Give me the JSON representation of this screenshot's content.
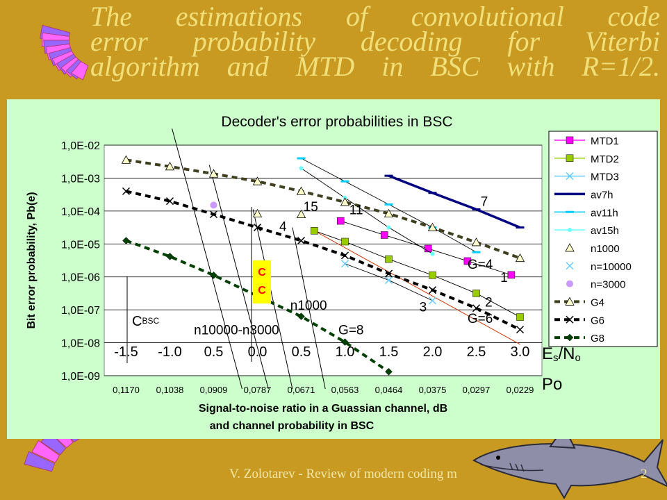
{
  "slide": {
    "title_lines": [
      "The estimations of convolutional code",
      "error probability decoding for Viterbi",
      "algorithm and MTD in BSC with R=1/2."
    ],
    "footer": "V. Zolotarev - Review of modern coding m",
    "page_number": "2",
    "colors": {
      "background": "#c89a22",
      "title": "#f1e079",
      "panel": "#ccffcc"
    }
  },
  "chart_data": {
    "type": "line",
    "title": "Decoder's error probabilities in BSC",
    "ylabel": "Bit error probability, Pb(e)",
    "xlabel": [
      "Signal-to-noise ratio in a Guassian channel, dB",
      "and channel probability in BSC"
    ],
    "x_ticks": [
      "0,1170",
      "0,1038",
      "0,0909",
      "0,0787",
      "0,0671",
      "0,0563",
      "0,0464",
      "0,0375",
      "0,0297",
      "0,0229"
    ],
    "snr_ticks": [
      "-1.5",
      "-1.0",
      "0.5",
      "0.0",
      "0.5",
      "1.0",
      "1.5",
      "2.0",
      "2.5",
      "3.0"
    ],
    "y_ticks": [
      "1,0E-02",
      "1,0E-03",
      "1,0E-04",
      "1,0E-05",
      "1,0E-06",
      "1,0E-07",
      "1,0E-08",
      "1,0E-09"
    ],
    "ylim_exp": [
      -9,
      -2
    ],
    "log_y": true,
    "grid": true,
    "legend_position": "right",
    "series": [
      {
        "name": "MTD1",
        "color": "#ff00ff",
        "marker": "square",
        "line": "solid-thin",
        "points": [
          [
            4.9,
            -4.3
          ],
          [
            5.9,
            -4.73
          ],
          [
            6.9,
            -5.14
          ],
          [
            7.8,
            -5.52
          ],
          [
            8.8,
            -5.94
          ]
        ]
      },
      {
        "name": "MTD2",
        "color": "#99cc00",
        "marker": "square",
        "line": "solid-thin",
        "points": [
          [
            4.3,
            -4.6
          ],
          [
            5.0,
            -4.93
          ],
          [
            6.0,
            -5.46
          ],
          [
            7.0,
            -5.95
          ],
          [
            8.0,
            -6.5
          ],
          [
            9.0,
            -7.22
          ]
        ]
      },
      {
        "name": "MTD3",
        "color": "#66ccff",
        "marker": "x",
        "line": "solid-thin",
        "points": [
          [
            5.0,
            -5.6
          ],
          [
            6.0,
            -6.1
          ],
          [
            7.0,
            -6.72
          ]
        ]
      },
      {
        "name": "av7h",
        "color": "#000080",
        "marker": "dash",
        "line": "solid-thick",
        "points": [
          [
            6.0,
            -2.93
          ],
          [
            7.0,
            -3.45
          ],
          [
            8.0,
            -3.95
          ],
          [
            9.0,
            -4.5
          ]
        ]
      },
      {
        "name": "av11h",
        "color": "#00ccff",
        "marker": "dash",
        "line": "solid-thin",
        "points": [
          [
            4.0,
            -2.4
          ],
          [
            5.0,
            -3.1
          ],
          [
            6.0,
            -3.8
          ],
          [
            7.0,
            -4.5
          ],
          [
            8.0,
            -5.25
          ]
        ]
      },
      {
        "name": "av15h",
        "color": "#66ffff",
        "marker": "dot",
        "line": "solid-thin",
        "points": [
          [
            4.0,
            -2.7
          ],
          [
            5.0,
            -3.6
          ],
          [
            6.0,
            -4.5
          ],
          [
            7.0,
            -5.3
          ]
        ]
      },
      {
        "name": "n1000",
        "color": "#ffffcc",
        "marker": "triangle",
        "line": "none",
        "points": [
          [
            3.0,
            -4.08
          ],
          [
            4.0,
            -4.1
          ]
        ]
      },
      {
        "name": "n=10000",
        "color": "#66ccff",
        "marker": "x",
        "line": "none",
        "points": [
          [
            6.0,
            -5.9
          ]
        ]
      },
      {
        "name": "n=3000",
        "color": "#cc99ff",
        "marker": "circle",
        "line": "none",
        "points": [
          [
            2.0,
            -3.82
          ]
        ]
      },
      {
        "name": "G4",
        "color": "#ffffcc",
        "marker": "triangle",
        "line": "dashed",
        "points": [
          [
            0,
            -2.45
          ],
          [
            1,
            -2.65
          ],
          [
            2,
            -2.87
          ],
          [
            3,
            -3.1
          ],
          [
            4,
            -3.4
          ],
          [
            5,
            -3.73
          ],
          [
            6,
            -4.08
          ],
          [
            7,
            -4.5
          ],
          [
            8,
            -4.95
          ],
          [
            9,
            -5.43
          ]
        ]
      },
      {
        "name": "G6",
        "color": "#000000",
        "marker": "x",
        "line": "dashed",
        "points": [
          [
            0,
            -3.4
          ],
          [
            1,
            -3.7
          ],
          [
            2,
            -4.1
          ],
          [
            3,
            -4.5
          ],
          [
            4,
            -4.9
          ],
          [
            5,
            -5.35
          ],
          [
            6,
            -5.9
          ],
          [
            7,
            -6.4
          ],
          [
            8,
            -6.95
          ],
          [
            9,
            -7.6
          ]
        ]
      },
      {
        "name": "G8",
        "color": "#004000",
        "marker": "diamond",
        "line": "dashed",
        "points": [
          [
            0,
            -4.9
          ],
          [
            1,
            -5.38
          ],
          [
            2,
            -5.95
          ],
          [
            3,
            -6.58
          ],
          [
            4,
            -7.2
          ],
          [
            5,
            -7.98
          ],
          [
            6,
            -8.88
          ]
        ]
      }
    ],
    "boundary_lines": [
      {
        "points": [
          [
            1.05,
            -1.5
          ],
          [
            2.65,
            -9.4
          ]
        ]
      },
      {
        "points": [
          [
            1.9,
            -2.6
          ],
          [
            3.25,
            -9.4
          ]
        ]
      },
      {
        "points": [
          [
            2.9,
            -3.95
          ],
          [
            3.8,
            -9.4
          ]
        ]
      },
      {
        "points": [
          [
            3.8,
            -4.5
          ],
          [
            4.55,
            -9.4
          ]
        ]
      }
    ],
    "extra_line": {
      "color": "#cc3300",
      "points": [
        [
          4.3,
          -4.6
        ],
        [
          9.0,
          -8.05
        ]
      ]
    },
    "annotations": [
      {
        "text": "15",
        "x": 4.05,
        "y": -4.0
      },
      {
        "text": "11",
        "x": 5.1,
        "y": -4.1
      },
      {
        "text": "7",
        "x": 8.1,
        "y": -3.85
      },
      {
        "text": "4",
        "x": 3.5,
        "y": -4.6
      },
      {
        "text": "G=4",
        "x": 7.8,
        "y": -5.75
      },
      {
        "text": "1",
        "x": 8.55,
        "y": -6.15
      },
      {
        "text": "2",
        "x": 8.2,
        "y": -6.9
      },
      {
        "text": "3",
        "x": 6.7,
        "y": -7.05
      },
      {
        "text": "G=6",
        "x": 7.8,
        "y": -7.4
      },
      {
        "text": "n1000",
        "x": 3.75,
        "y": -7.0
      },
      {
        "text": "n10000-n3000",
        "x": 1.55,
        "y": -7.75
      },
      {
        "text": "G=8",
        "x": 4.85,
        "y": -7.75
      }
    ],
    "cbsc_label": {
      "big": "C",
      "small": "BSC"
    },
    "cc_box": {
      "lines": [
        "C",
        "C"
      ]
    },
    "side_labels": {
      "es_n0": "Es/No",
      "p0": "Po"
    }
  }
}
